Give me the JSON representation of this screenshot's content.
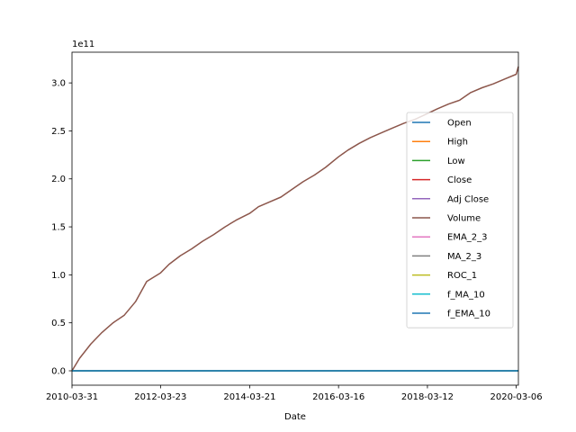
{
  "chart_data": {
    "type": "line",
    "title": "",
    "xlabel": "Date",
    "ylabel": "",
    "y_offset_label": "1e11",
    "x_ticks": [
      "2010-03-31",
      "2012-03-23",
      "2014-03-21",
      "2016-03-16",
      "2018-03-12",
      "2020-03-06"
    ],
    "x_domain": [
      "2010-03-31",
      "2020-03-24"
    ],
    "y_ticks": [
      "0.0",
      "0.5",
      "1.0",
      "1.5",
      "2.0",
      "2.5",
      "3.0"
    ],
    "y_scale": 100000000000.0,
    "ylim": [
      -0.15,
      3.32
    ],
    "grid": false,
    "legend_position": "center-right",
    "series": [
      {
        "name": "Open",
        "color": "#1f77b4",
        "x": [
          "2010-03-31",
          "2020-03-24"
        ],
        "y": [
          0,
          0
        ]
      },
      {
        "name": "High",
        "color": "#ff7f0e",
        "x": [
          "2010-03-31",
          "2020-03-24"
        ],
        "y": [
          0,
          0
        ]
      },
      {
        "name": "Low",
        "color": "#2ca02c",
        "x": [
          "2010-03-31",
          "2020-03-24"
        ],
        "y": [
          0,
          0
        ]
      },
      {
        "name": "Close",
        "color": "#d62728",
        "x": [
          "2010-03-31",
          "2020-03-24"
        ],
        "y": [
          0,
          0
        ]
      },
      {
        "name": "Adj Close",
        "color": "#9467bd",
        "x": [
          "2010-03-31",
          "2020-03-24"
        ],
        "y": [
          0,
          0
        ]
      },
      {
        "name": "Volume",
        "color": "#8c564b",
        "x": [
          "2010-03-31",
          "2010-06-01",
          "2010-09-01",
          "2010-12-01",
          "2011-03-01",
          "2011-06-01",
          "2011-09-01",
          "2011-12-01",
          "2012-03-23",
          "2012-06-01",
          "2012-09-01",
          "2012-12-01",
          "2013-03-01",
          "2013-06-01",
          "2013-09-01",
          "2013-12-01",
          "2014-03-21",
          "2014-06-01",
          "2014-09-01",
          "2014-12-01",
          "2015-03-01",
          "2015-06-01",
          "2015-09-01",
          "2015-12-01",
          "2016-03-16",
          "2016-06-01",
          "2016-09-01",
          "2016-12-01",
          "2017-03-01",
          "2017-06-01",
          "2017-09-01",
          "2017-12-01",
          "2018-03-12",
          "2018-06-01",
          "2018-09-01",
          "2018-12-01",
          "2019-03-01",
          "2019-06-01",
          "2019-09-01",
          "2019-12-01",
          "2020-03-06",
          "2020-03-24"
        ],
        "y": [
          0.0,
          0.13,
          0.28,
          0.4,
          0.5,
          0.58,
          0.72,
          0.93,
          1.02,
          1.11,
          1.2,
          1.27,
          1.35,
          1.42,
          1.5,
          1.57,
          1.64,
          1.71,
          1.76,
          1.81,
          1.89,
          1.97,
          2.04,
          2.12,
          2.23,
          2.3,
          2.37,
          2.43,
          2.48,
          2.53,
          2.58,
          2.62,
          2.68,
          2.73,
          2.78,
          2.82,
          2.9,
          2.95,
          2.99,
          3.04,
          3.09,
          3.17
        ]
      },
      {
        "name": "EMA_2_3",
        "color": "#e377c2",
        "x": [
          "2010-03-31",
          "2020-03-24"
        ],
        "y": [
          0,
          0
        ]
      },
      {
        "name": "MA_2_3",
        "color": "#7f7f7f",
        "x": [
          "2010-03-31",
          "2020-03-24"
        ],
        "y": [
          0,
          0
        ]
      },
      {
        "name": "ROC_1",
        "color": "#bcbd22",
        "x": [
          "2010-03-31",
          "2020-03-24"
        ],
        "y": [
          0,
          0
        ]
      },
      {
        "name": "f_MA_10",
        "color": "#17becf",
        "x": [
          "2010-03-31",
          "2020-03-24"
        ],
        "y": [
          0,
          0
        ]
      },
      {
        "name": "f_EMA_10",
        "color": "#1f77b4",
        "x": [
          "2010-03-31",
          "2020-03-24"
        ],
        "y": [
          0,
          0
        ]
      }
    ]
  }
}
